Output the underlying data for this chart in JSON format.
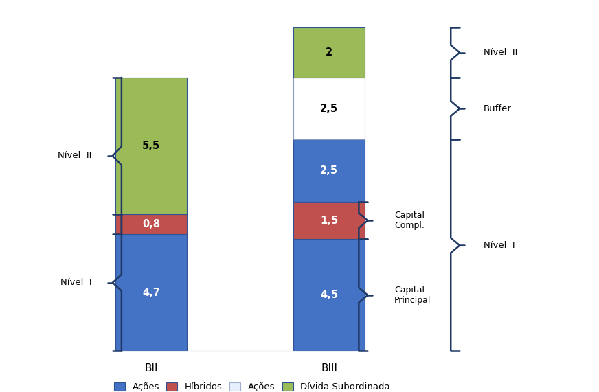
{
  "bii_segments": [
    {
      "value": 4.7,
      "color": "#4472C4",
      "label": "4,7",
      "text_color": "white"
    },
    {
      "value": 0.8,
      "color": "#C0504D",
      "label": "0,8",
      "text_color": "white"
    },
    {
      "value": 5.5,
      "color": "#9BBB59",
      "label": "5,5",
      "text_color": "black"
    }
  ],
  "biii_segments": [
    {
      "value": 4.5,
      "color": "#4472C4",
      "label": "4,5",
      "text_color": "white"
    },
    {
      "value": 1.5,
      "color": "#C0504D",
      "label": "1,5",
      "text_color": "white"
    },
    {
      "value": 2.5,
      "color": "#4472C4",
      "label": "2,5",
      "text_color": "white"
    },
    {
      "value": 2.5,
      "color": "#FFFFFF",
      "label": "2,5",
      "text_color": "black"
    },
    {
      "value": 2.0,
      "color": "#9BBB59",
      "label": "2",
      "text_color": "black"
    }
  ],
  "legend_items": [
    {
      "label": "Ações",
      "color": "#4472C4",
      "edge": "#2F5496"
    },
    {
      "label": "Híbridos",
      "color": "#C0504D",
      "edge": "#2F5496"
    },
    {
      "label": "Ações",
      "color": "#E8F0FF",
      "edge": "#A0B0CC"
    },
    {
      "label": "Dívida Subordinada",
      "color": "#9BBB59",
      "edge": "#2F5496"
    }
  ],
  "bar_edge_color": "#2F5496",
  "background_color": "#FFFFFF",
  "bracket_color": "#1F3864",
  "label_fontsize": 10.5,
  "bracket_fontsize": 9.5,
  "inner_bracket_fontsize": 9.0
}
